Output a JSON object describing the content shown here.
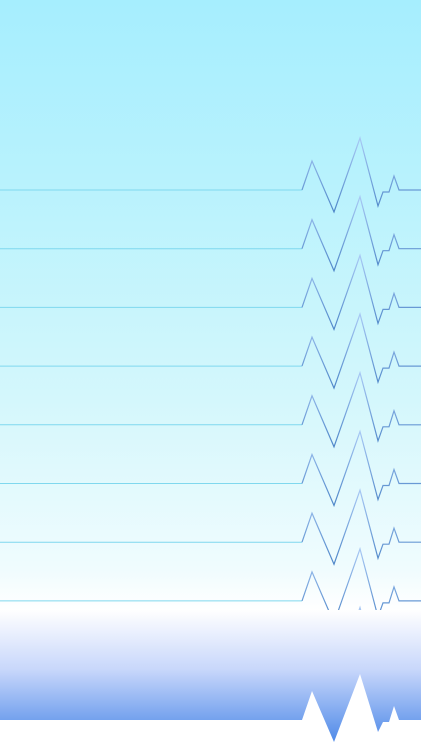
{
  "wallpaper": {
    "pattern": "heartbeat-lines",
    "line_count": 9,
    "colors": {
      "background_top": "#a6eefe",
      "background_mid": "#d4f7fc",
      "background_light": "#ffffff",
      "band_top": "#ffffff",
      "band_mid": "#c8d7fb",
      "band_bottom": "#4f8ae8",
      "line_flat": "#7fd8ee",
      "line_spike_light": "#a8c8f4",
      "line_spike_dark": "#4e86c8"
    }
  }
}
